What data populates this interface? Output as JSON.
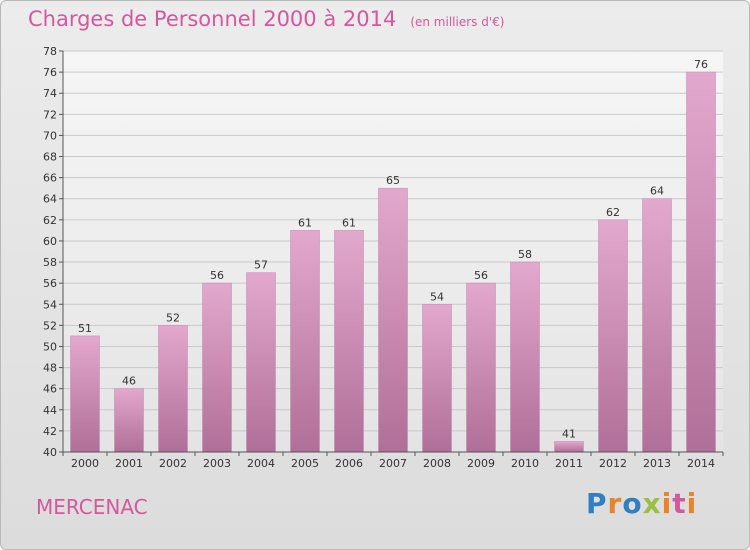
{
  "header": {
    "title": "Charges de Personnel 2000 à 2014",
    "unit": "(en milliers d'€)"
  },
  "footer": {
    "place": "MERCENAC",
    "logo": "Proxiti"
  },
  "colors": {
    "bar_top": "#e3a8cd",
    "bar_bottom": "#b06f98",
    "accent": "#d4589e"
  },
  "chart_data": {
    "type": "bar",
    "title": "Charges de Personnel 2000 à 2014",
    "subtitle": "(en milliers d'€)",
    "categories": [
      "2000",
      "2001",
      "2002",
      "2003",
      "2004",
      "2005",
      "2006",
      "2007",
      "2008",
      "2009",
      "2010",
      "2011",
      "2012",
      "2013",
      "2014"
    ],
    "values": [
      51,
      46,
      52,
      56,
      57,
      61,
      61,
      65,
      54,
      56,
      58,
      41,
      62,
      64,
      76
    ],
    "ylim": [
      40,
      78
    ],
    "yticks": [
      40,
      42,
      44,
      46,
      48,
      50,
      52,
      54,
      56,
      58,
      60,
      62,
      64,
      66,
      68,
      70,
      72,
      74,
      76,
      78
    ],
    "grid": true,
    "legend": "none"
  }
}
